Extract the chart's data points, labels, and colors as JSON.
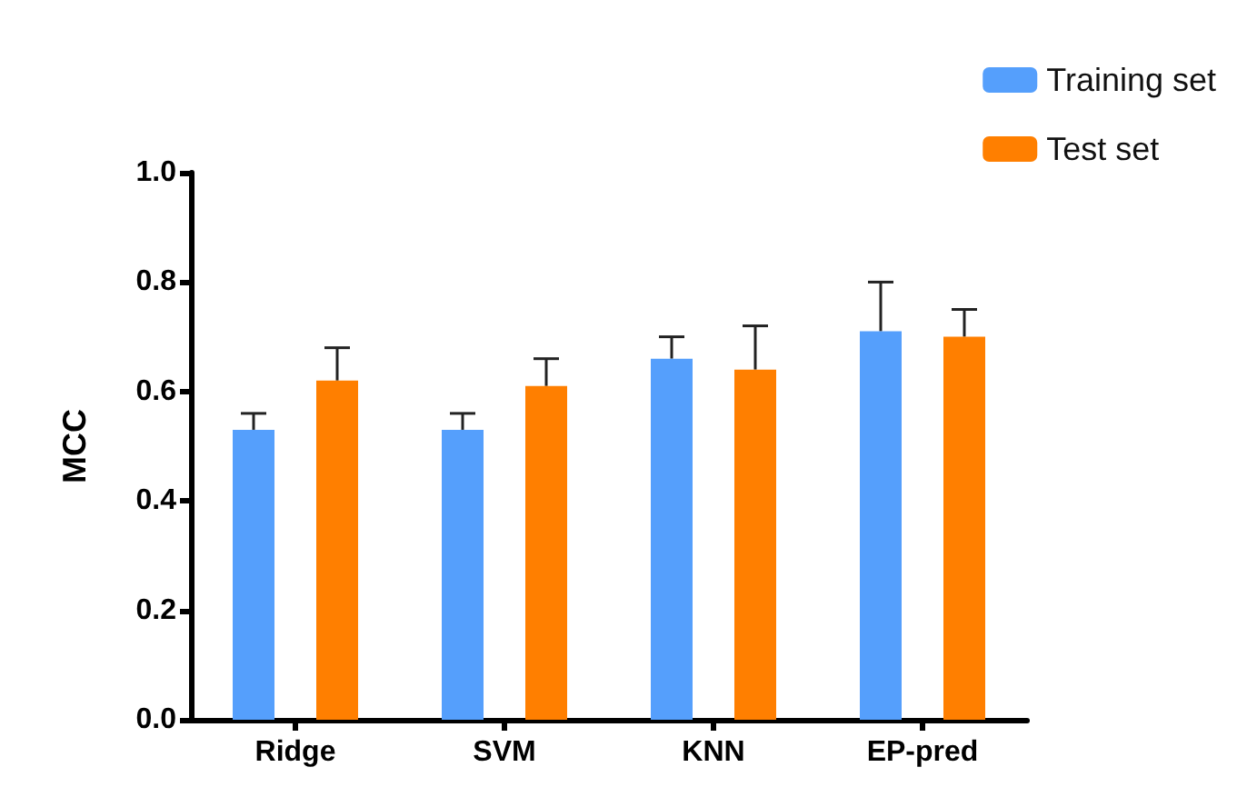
{
  "chart_data": {
    "type": "bar",
    "ylabel": "MCC",
    "categories": [
      "Ridge",
      "SVM",
      "KNN",
      "EP-pred"
    ],
    "series": [
      {
        "name": "Training set",
        "color": "#559ffc",
        "values": [
          0.53,
          0.53,
          0.66,
          0.71
        ],
        "errors": [
          [
            0.53,
            0.56
          ],
          [
            0.53,
            0.56
          ],
          [
            0.66,
            0.7
          ],
          [
            0.71,
            0.8
          ]
        ]
      },
      {
        "name": "Test set",
        "color": "#ff7f00",
        "values": [
          0.62,
          0.61,
          0.64,
          0.7
        ],
        "errors": [
          [
            0.62,
            0.68
          ],
          [
            0.61,
            0.66
          ],
          [
            0.64,
            0.72
          ],
          [
            0.7,
            0.75
          ]
        ]
      }
    ],
    "ylim": [
      0,
      1
    ],
    "yticks": [
      {
        "value": 0,
        "label": "0.0"
      },
      0.2,
      0.4,
      0.6,
      0.8,
      {
        "value": 1,
        "label": "1.0"
      }
    ],
    "grid": false,
    "legend": "top right"
  }
}
